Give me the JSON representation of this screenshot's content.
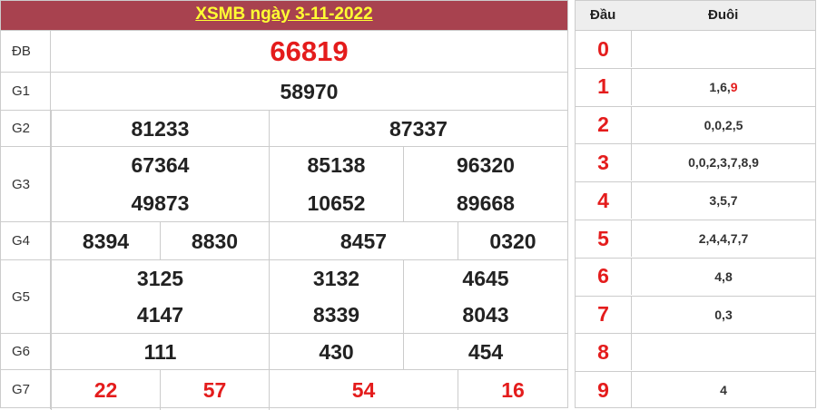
{
  "title": "XSMB ngày 3-11-2022",
  "prizes": {
    "db": {
      "label": "ĐB",
      "values": [
        "66819"
      ]
    },
    "g1": {
      "label": "G1",
      "values": [
        "58970"
      ]
    },
    "g2": {
      "label": "G2",
      "values": [
        "81233",
        "87337"
      ]
    },
    "g3": {
      "label": "G3",
      "values": [
        "67364",
        "85138",
        "96320",
        "49873",
        "10652",
        "89668"
      ]
    },
    "g4": {
      "label": "G4",
      "values": [
        "8394",
        "8830",
        "8457",
        "0320"
      ]
    },
    "g5": {
      "label": "G5",
      "values": [
        "3125",
        "3132",
        "4645",
        "4147",
        "8339",
        "8043"
      ]
    },
    "g6": {
      "label": "G6",
      "values": [
        "111",
        "430",
        "454"
      ]
    },
    "g7": {
      "label": "G7",
      "values": [
        "22",
        "57",
        "54",
        "16"
      ]
    }
  },
  "loto": {
    "head_label": "Đầu",
    "tail_label": "Đuôi",
    "rows": [
      {
        "head": "0",
        "tail": ""
      },
      {
        "head": "1",
        "tail": "1,6,",
        "tail_highlight": "9"
      },
      {
        "head": "2",
        "tail": "0,0,2,5"
      },
      {
        "head": "3",
        "tail": "0,0,2,3,7,8,9"
      },
      {
        "head": "4",
        "tail": "3,5,7"
      },
      {
        "head": "5",
        "tail": "2,4,4,7,7"
      },
      {
        "head": "6",
        "tail": "4,8"
      },
      {
        "head": "7",
        "tail": "0,3"
      },
      {
        "head": "8",
        "tail": ""
      },
      {
        "head": "9",
        "tail": "4"
      }
    ]
  },
  "colors": {
    "header_bg": "#a8424f",
    "title": "#ffff33",
    "highlight": "#e41c1c"
  }
}
